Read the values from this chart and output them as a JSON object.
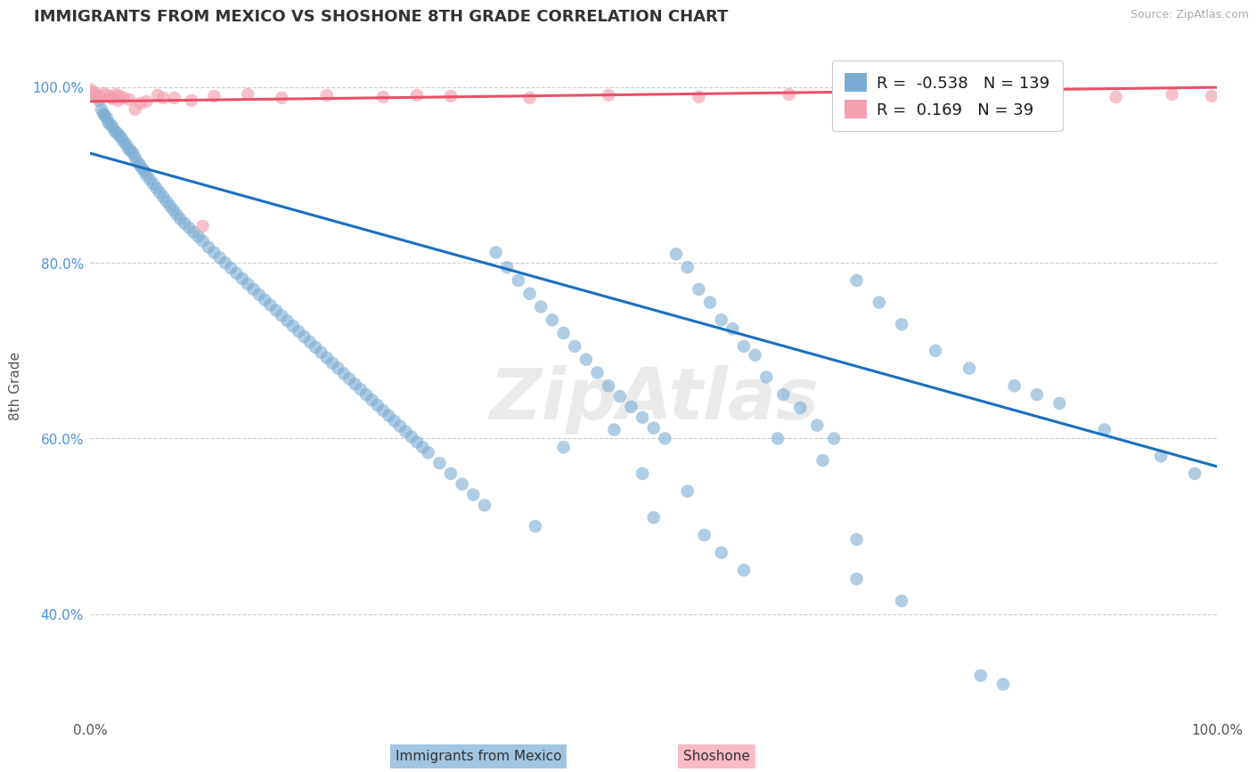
{
  "title": "IMMIGRANTS FROM MEXICO VS SHOSHONE 8TH GRADE CORRELATION CHART",
  "source_text": "Source: ZipAtlas.com",
  "ylabel": "8th Grade",
  "xlim": [
    0.0,
    1.0
  ],
  "ylim": [
    0.28,
    1.04
  ],
  "blue_R": -0.538,
  "blue_N": 139,
  "pink_R": 0.169,
  "pink_N": 39,
  "blue_color": "#7aadd4",
  "pink_color": "#f4a0b0",
  "blue_line_color": "#1a6fbf",
  "pink_line_color": "#e8506a",
  "legend_label_blue": "Immigrants from Mexico",
  "legend_label_pink": "Shoshone",
  "yticks": [
    0.4,
    0.6,
    0.8,
    1.0
  ],
  "ytick_labels": [
    "40.0%",
    "60.0%",
    "80.0%",
    "100.0%"
  ],
  "blue_x": [
    0.005,
    0.008,
    0.01,
    0.012,
    0.013,
    0.015,
    0.016,
    0.018,
    0.02,
    0.022,
    0.024,
    0.026,
    0.028,
    0.03,
    0.032,
    0.034,
    0.036,
    0.038,
    0.04,
    0.042,
    0.044,
    0.046,
    0.048,
    0.05,
    0.053,
    0.056,
    0.059,
    0.062,
    0.065,
    0.068,
    0.071,
    0.074,
    0.077,
    0.08,
    0.084,
    0.088,
    0.092,
    0.096,
    0.1,
    0.105,
    0.11,
    0.115,
    0.12,
    0.125,
    0.13,
    0.135,
    0.14,
    0.145,
    0.15,
    0.155,
    0.16,
    0.165,
    0.17,
    0.175,
    0.18,
    0.185,
    0.19,
    0.195,
    0.2,
    0.205,
    0.21,
    0.215,
    0.22,
    0.225,
    0.23,
    0.235,
    0.24,
    0.245,
    0.25,
    0.255,
    0.26,
    0.265,
    0.27,
    0.275,
    0.28,
    0.285,
    0.29,
    0.295,
    0.3,
    0.31,
    0.32,
    0.33,
    0.34,
    0.35,
    0.36,
    0.37,
    0.38,
    0.39,
    0.4,
    0.41,
    0.42,
    0.43,
    0.44,
    0.45,
    0.46,
    0.47,
    0.48,
    0.49,
    0.5,
    0.51,
    0.52,
    0.53,
    0.54,
    0.55,
    0.56,
    0.57,
    0.58,
    0.59,
    0.6,
    0.615,
    0.63,
    0.645,
    0.66,
    0.68,
    0.7,
    0.72,
    0.75,
    0.78,
    0.82,
    0.86,
    0.9,
    0.95,
    0.98,
    0.5,
    0.545,
    0.56,
    0.58,
    0.61,
    0.65,
    0.68,
    0.72,
    0.79,
    0.84,
    0.49,
    0.53,
    0.42,
    0.465,
    0.395,
    0.68,
    0.81
  ],
  "blue_y": [
    0.99,
    0.985,
    0.975,
    0.97,
    0.968,
    0.965,
    0.96,
    0.958,
    0.955,
    0.95,
    0.948,
    0.945,
    0.942,
    0.938,
    0.935,
    0.93,
    0.928,
    0.925,
    0.92,
    0.915,
    0.912,
    0.908,
    0.905,
    0.9,
    0.895,
    0.89,
    0.885,
    0.88,
    0.875,
    0.87,
    0.865,
    0.86,
    0.855,
    0.85,
    0.845,
    0.84,
    0.835,
    0.83,
    0.825,
    0.818,
    0.812,
    0.806,
    0.8,
    0.794,
    0.788,
    0.782,
    0.776,
    0.77,
    0.764,
    0.758,
    0.752,
    0.746,
    0.74,
    0.734,
    0.728,
    0.722,
    0.716,
    0.71,
    0.704,
    0.698,
    0.692,
    0.686,
    0.68,
    0.674,
    0.668,
    0.662,
    0.656,
    0.65,
    0.644,
    0.638,
    0.632,
    0.626,
    0.62,
    0.614,
    0.608,
    0.602,
    0.596,
    0.59,
    0.584,
    0.572,
    0.56,
    0.548,
    0.536,
    0.524,
    0.812,
    0.795,
    0.78,
    0.765,
    0.75,
    0.735,
    0.72,
    0.705,
    0.69,
    0.675,
    0.66,
    0.648,
    0.636,
    0.624,
    0.612,
    0.6,
    0.81,
    0.795,
    0.77,
    0.755,
    0.735,
    0.725,
    0.705,
    0.695,
    0.67,
    0.65,
    0.635,
    0.615,
    0.6,
    0.78,
    0.755,
    0.73,
    0.7,
    0.68,
    0.66,
    0.64,
    0.61,
    0.58,
    0.56,
    0.51,
    0.49,
    0.47,
    0.45,
    0.6,
    0.575,
    0.44,
    0.415,
    0.33,
    0.65,
    0.56,
    0.54,
    0.59,
    0.61,
    0.5,
    0.485,
    0.32
  ],
  "pink_x": [
    0.0,
    0.003,
    0.005,
    0.007,
    0.01,
    0.012,
    0.015,
    0.018,
    0.02,
    0.023,
    0.026,
    0.03,
    0.035,
    0.04,
    0.05,
    0.06,
    0.075,
    0.09,
    0.11,
    0.14,
    0.17,
    0.21,
    0.26,
    0.32,
    0.39,
    0.46,
    0.54,
    0.62,
    0.7,
    0.78,
    0.85,
    0.91,
    0.96,
    0.995,
    0.025,
    0.045,
    0.065,
    0.1,
    0.29
  ],
  "pink_y": [
    0.998,
    0.995,
    0.992,
    0.99,
    0.988,
    0.993,
    0.991,
    0.989,
    0.987,
    0.992,
    0.99,
    0.988,
    0.986,
    0.975,
    0.984,
    0.991,
    0.988,
    0.985,
    0.99,
    0.992,
    0.988,
    0.991,
    0.989,
    0.99,
    0.988,
    0.991,
    0.989,
    0.992,
    0.99,
    0.993,
    0.991,
    0.989,
    0.992,
    0.99,
    0.985,
    0.982,
    0.988,
    0.842,
    0.991
  ],
  "blue_trend_x0": 0.0,
  "blue_trend_y0": 0.925,
  "blue_trend_x1": 1.0,
  "blue_trend_y1": 0.568,
  "pink_trend_x0": 0.0,
  "pink_trend_y0": 0.984,
  "pink_trend_x1": 1.0,
  "pink_trend_y1": 1.0,
  "watermark": "ZipAtlas",
  "grid_color": "#cccccc",
  "background_color": "#ffffff"
}
